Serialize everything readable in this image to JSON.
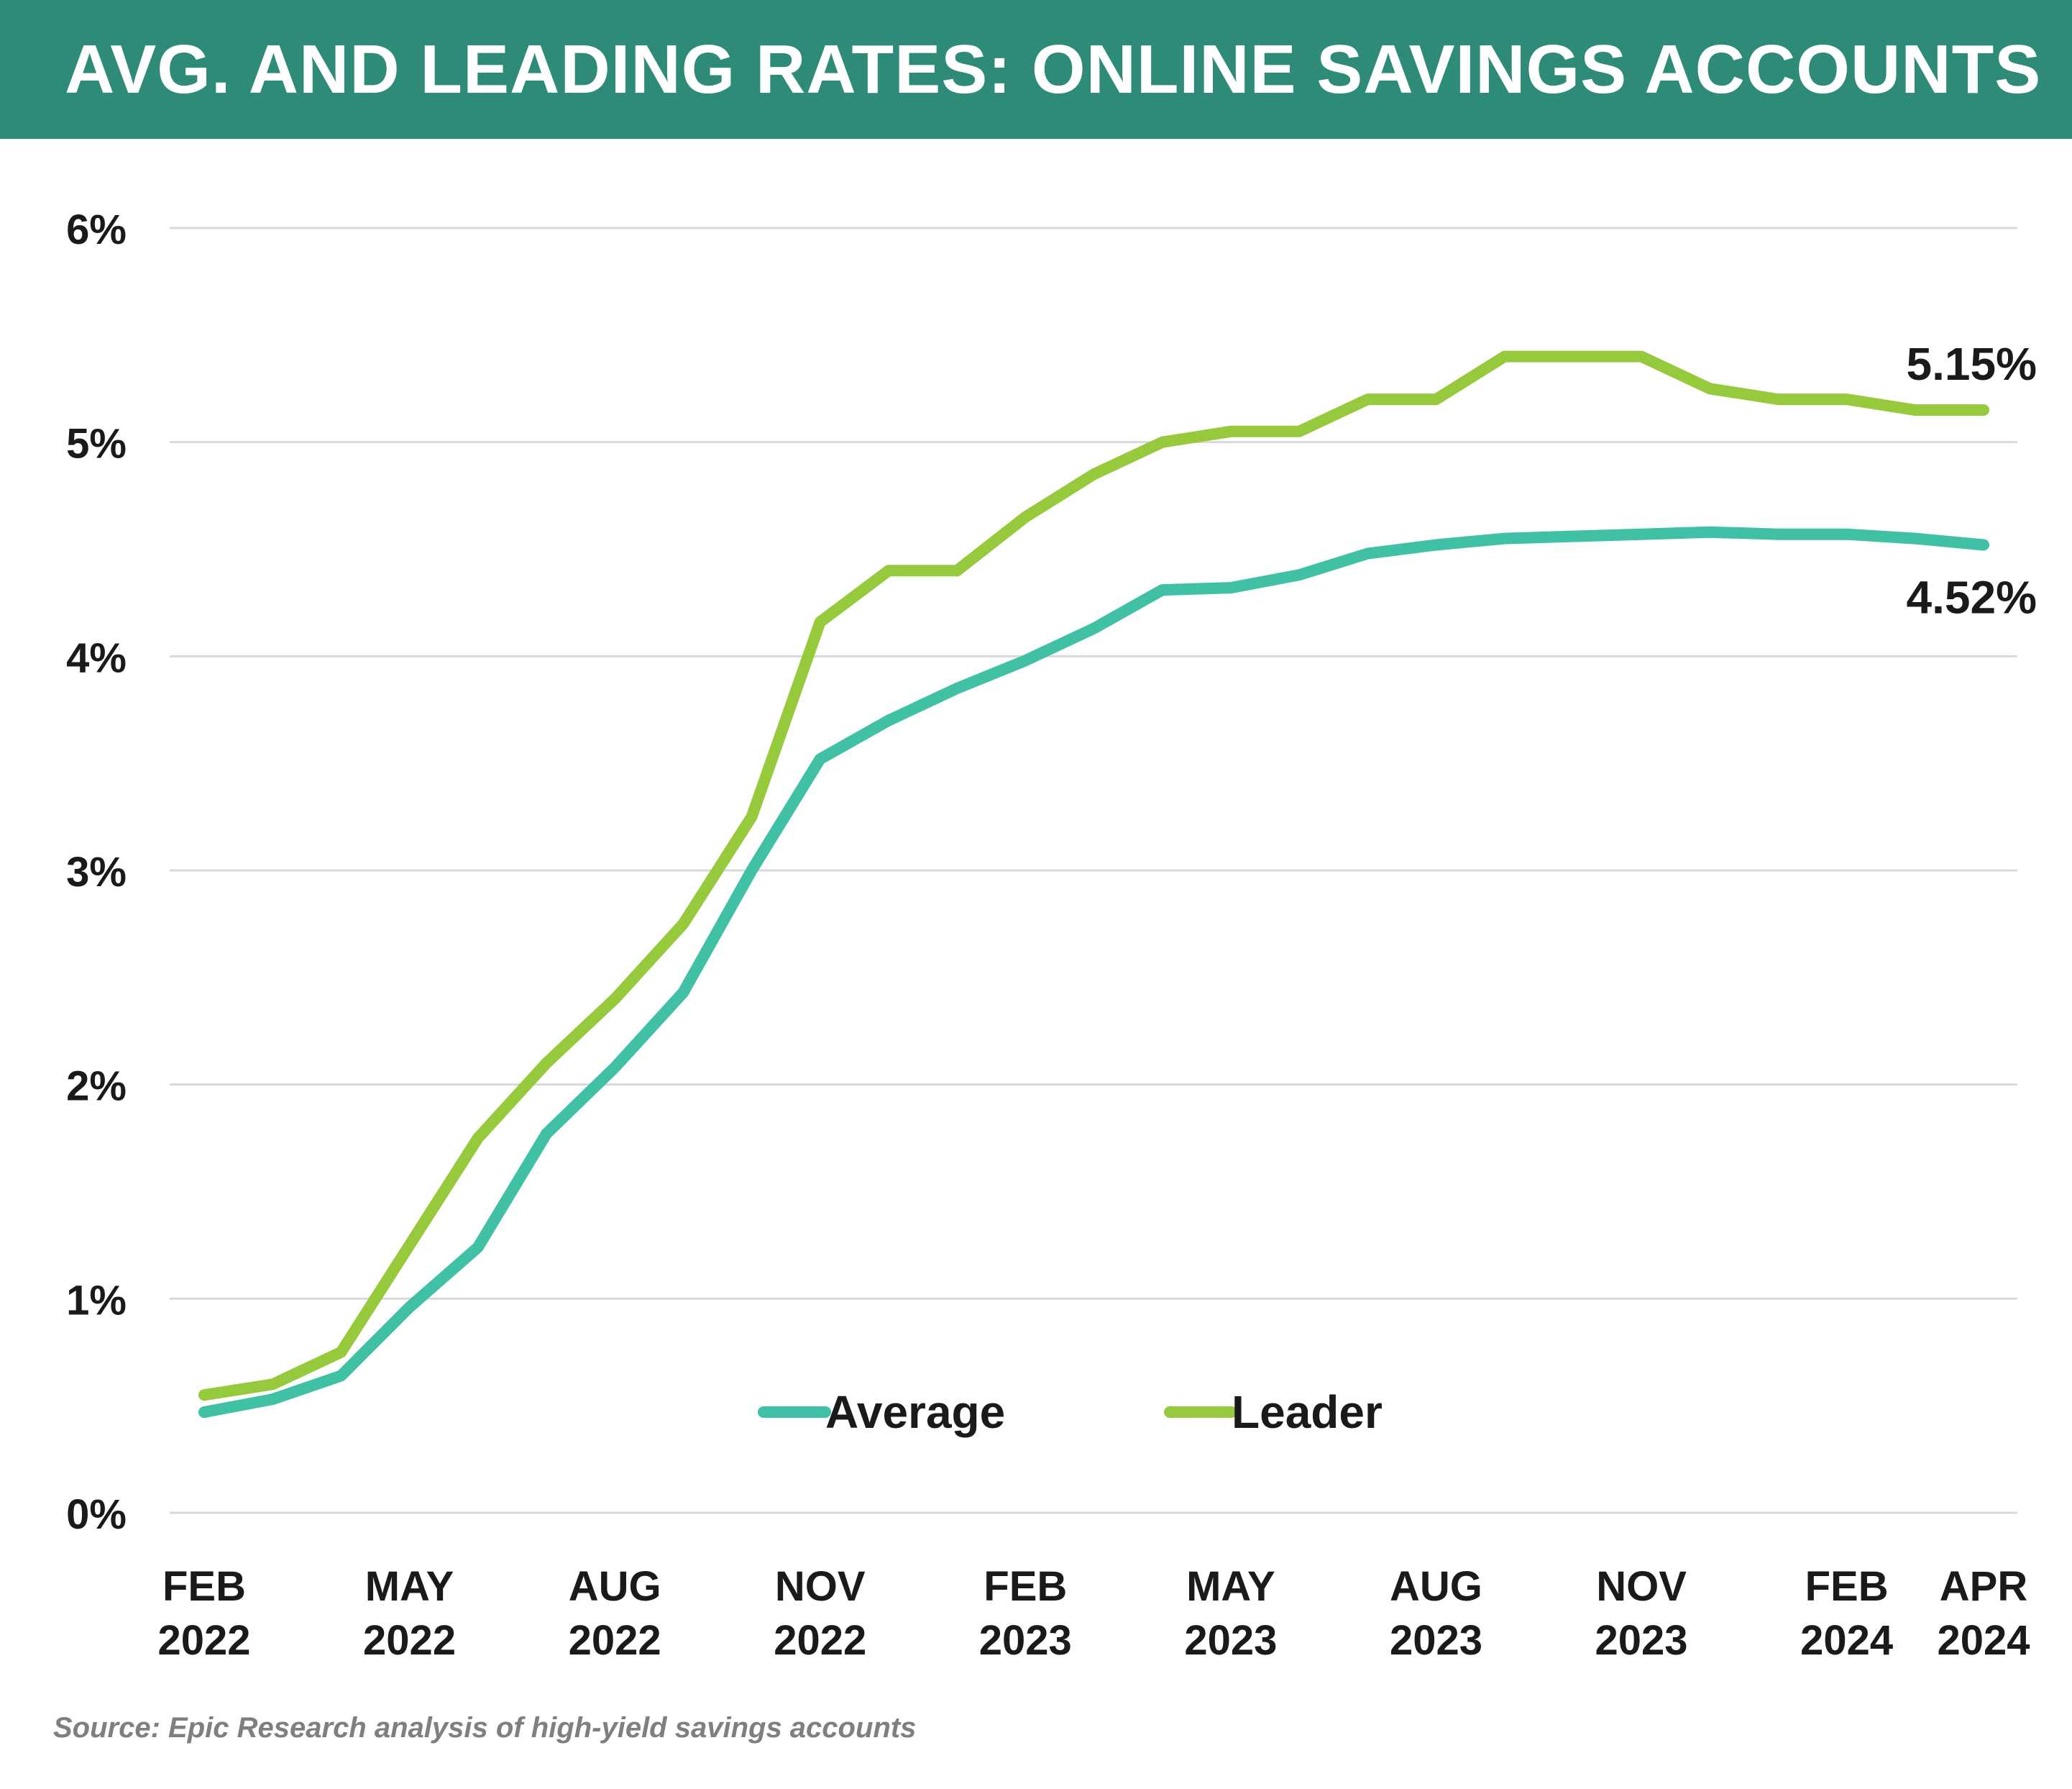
{
  "header": {
    "title": "AVG. AND LEADING RATES: ONLINE SAVINGS ACCOUNTS"
  },
  "source": "Source: Epic Research analysis of high-yield savings accounts",
  "colors": {
    "header_bg": "#2e8b77",
    "average": "#40c0a4",
    "leader": "#97c93c",
    "grid": "#d9d9d9"
  },
  "chart_data": {
    "type": "line",
    "title": "AVG. AND LEADING RATES: ONLINE SAVINGS ACCOUNTS",
    "xlabel": "",
    "ylabel": "",
    "ylim": [
      0,
      6
    ],
    "y_ticks": [
      0,
      1,
      2,
      3,
      4,
      5,
      6
    ],
    "y_tick_labels": [
      "0%",
      "1%",
      "2%",
      "3%",
      "4%",
      "5%",
      "6%"
    ],
    "grid": true,
    "legend": "bottom-center",
    "x": [
      "2022-02",
      "2022-03",
      "2022-04",
      "2022-05",
      "2022-06",
      "2022-07",
      "2022-08",
      "2022-09",
      "2022-10",
      "2022-11",
      "2022-12",
      "2023-01",
      "2023-02",
      "2023-03",
      "2023-04",
      "2023-05",
      "2023-06",
      "2023-07",
      "2023-08",
      "2023-09",
      "2023-10",
      "2023-11",
      "2023-12",
      "2024-01",
      "2024-02",
      "2024-03",
      "2024-04"
    ],
    "x_tick_labels": [
      {
        "x": "2022-02",
        "line1": "FEB",
        "line2": "2022"
      },
      {
        "x": "2022-05",
        "line1": "MAY",
        "line2": "2022"
      },
      {
        "x": "2022-08",
        "line1": "AUG",
        "line2": "2022"
      },
      {
        "x": "2022-11",
        "line1": "NOV",
        "line2": "2022"
      },
      {
        "x": "2023-02",
        "line1": "FEB",
        "line2": "2023"
      },
      {
        "x": "2023-05",
        "line1": "MAY",
        "line2": "2023"
      },
      {
        "x": "2023-08",
        "line1": "AUG",
        "line2": "2023"
      },
      {
        "x": "2023-11",
        "line1": "NOV",
        "line2": "2023"
      },
      {
        "x": "2024-02",
        "line1": "FEB",
        "line2": "2024"
      },
      {
        "x": "2024-04",
        "line1": "APR",
        "line2": "2024"
      }
    ],
    "series": [
      {
        "name": "Average",
        "color": "#40c0a4",
        "values": [
          0.47,
          0.53,
          0.64,
          0.96,
          1.24,
          1.77,
          2.08,
          2.43,
          3.0,
          3.52,
          3.7,
          3.85,
          3.98,
          4.13,
          4.31,
          4.32,
          4.38,
          4.48,
          4.52,
          4.55,
          4.56,
          4.57,
          4.58,
          4.57,
          4.57,
          4.55,
          4.52
        ],
        "end_label": "4.52%"
      },
      {
        "name": "Leader",
        "color": "#97c93c",
        "values": [
          0.55,
          0.6,
          0.75,
          1.25,
          1.75,
          2.1,
          2.4,
          2.75,
          3.25,
          4.16,
          4.4,
          4.4,
          4.65,
          4.85,
          5.0,
          5.05,
          5.05,
          5.2,
          5.2,
          5.4,
          5.4,
          5.4,
          5.25,
          5.2,
          5.2,
          5.15,
          5.15
        ],
        "end_label": "5.15%"
      }
    ]
  }
}
